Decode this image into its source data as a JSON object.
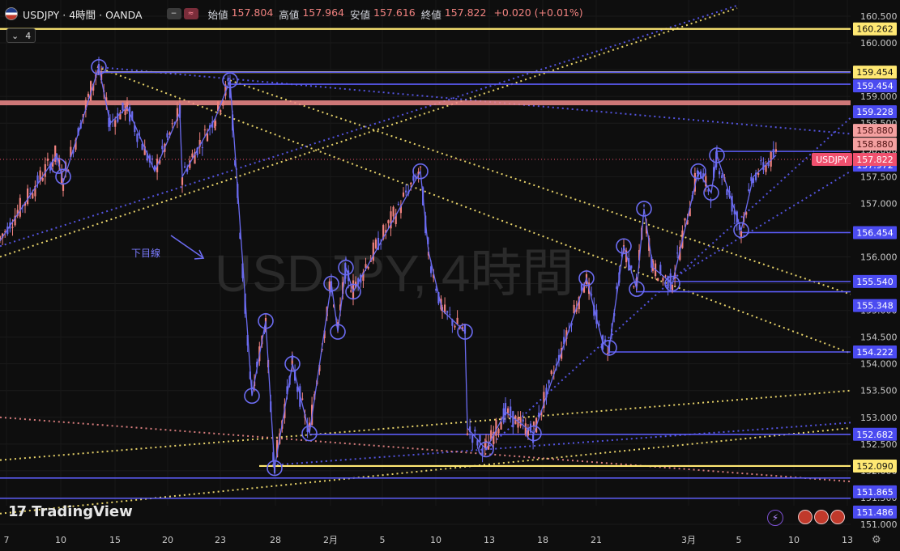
{
  "header": {
    "symbol_line": "USDJPY · 4時間 · OANDA",
    "pill_icons": [
      "minus-icon",
      "approx-icon"
    ],
    "open_label": "始値",
    "open": "157.804",
    "high_label": "高値",
    "high": "157.964",
    "low_label": "安値",
    "low": "157.616",
    "close_label": "終値",
    "close": "157.822",
    "change": "+0.020 (+0.01%)"
  },
  "indicator_toggle": {
    "icon": "chevron-down-icon",
    "count": "4"
  },
  "watermark": "USDJPY, 4時間",
  "annotation": "下目線",
  "branding": "TradingView",
  "colors": {
    "background": "#0e0e0e",
    "bull": "#f0827f",
    "bear": "#6b6bf0",
    "yellow": "#ffe873",
    "blue": "#5b5bf5",
    "red_zone": "#f08a8a",
    "last_price_bg": "#f0506e"
  },
  "chart_data": {
    "type": "candlestick",
    "symbol": "USDJPY",
    "timeframe": "4時間",
    "ylim": [
      151.0,
      160.65
    ],
    "y_ticks": [
      "151.000",
      "151.500",
      "152.000",
      "152.500",
      "153.000",
      "153.500",
      "154.000",
      "154.500",
      "155.000",
      "155.500",
      "156.000",
      "156.500",
      "157.000",
      "157.500",
      "158.000",
      "158.500",
      "159.000",
      "159.500",
      "160.000",
      "160.500"
    ],
    "x_ticks": [
      "7",
      "10",
      "15",
      "20",
      "23",
      "28",
      "2月",
      "5",
      "10",
      "13",
      "18",
      "21",
      "3月",
      "5",
      "10",
      "13"
    ],
    "last_price": {
      "label": "USDJPY",
      "value": "157.822"
    },
    "price_levels": [
      {
        "value": 160.262,
        "label": "160.262",
        "color": "yellow"
      },
      {
        "value": 159.454,
        "label": "159.454",
        "color": "yellow"
      },
      {
        "value": 159.454,
        "label": "159.454",
        "color": "blue"
      },
      {
        "value": 159.228,
        "label": "159.228",
        "color": "blue"
      },
      {
        "value": 158.88,
        "label": "158.880",
        "color": "red"
      },
      {
        "value": 158.88,
        "label": "158.880",
        "color": "red"
      },
      {
        "value": 157.972,
        "label": "157.972",
        "color": "blue"
      },
      {
        "value": 156.454,
        "label": "156.454",
        "color": "blue"
      },
      {
        "value": 155.54,
        "label": "155.540",
        "color": "blue"
      },
      {
        "value": 155.348,
        "label": "155.348",
        "color": "blue"
      },
      {
        "value": 154.222,
        "label": "154.222",
        "color": "blue"
      },
      {
        "value": 152.682,
        "label": "152.682",
        "color": "blue"
      },
      {
        "value": 152.09,
        "label": "152.090",
        "color": "yellow"
      },
      {
        "value": 151.865,
        "label": "151.865",
        "color": "blue"
      },
      {
        "value": 151.486,
        "label": "151.486",
        "color": "blue"
      }
    ],
    "swing_path": [
      [
        0,
        156.3
      ],
      [
        70,
        157.9
      ],
      [
        78,
        157.4
      ],
      [
        122,
        159.55
      ],
      [
        136,
        158.5
      ],
      [
        157,
        158.8
      ],
      [
        191,
        157.6
      ],
      [
        222,
        158.7
      ],
      [
        225,
        157.5
      ],
      [
        266,
        158.6
      ],
      [
        284,
        159.3
      ],
      [
        311,
        153.4
      ],
      [
        328,
        154.8
      ],
      [
        339,
        152.05
      ],
      [
        361,
        154.0
      ],
      [
        382,
        152.7
      ],
      [
        409,
        155.5
      ],
      [
        417,
        154.6
      ],
      [
        427,
        155.8
      ],
      [
        436,
        155.35
      ],
      [
        519,
        157.6
      ],
      [
        529,
        156.1
      ],
      [
        546,
        155.0
      ],
      [
        574,
        154.6
      ],
      [
        577,
        152.8
      ],
      [
        600,
        152.4
      ],
      [
        624,
        153.1
      ],
      [
        659,
        152.7
      ],
      [
        724,
        155.6
      ],
      [
        744,
        154.4
      ],
      [
        752,
        154.3
      ],
      [
        770,
        156.2
      ],
      [
        786,
        155.4
      ],
      [
        795,
        156.9
      ],
      [
        806,
        155.8
      ],
      [
        830,
        155.5
      ],
      [
        862,
        157.6
      ],
      [
        878,
        157.2
      ],
      [
        885,
        157.9
      ],
      [
        915,
        156.5
      ],
      [
        930,
        157.5
      ],
      [
        958,
        157.9
      ]
    ],
    "pivot_circles": [
      [
        72,
        157.7
      ],
      [
        78,
        157.5
      ],
      [
        122,
        159.55
      ],
      [
        284,
        159.3
      ],
      [
        311,
        153.4
      ],
      [
        328,
        154.8
      ],
      [
        339,
        152.05
      ],
      [
        361,
        154.0
      ],
      [
        382,
        152.7
      ],
      [
        409,
        155.5
      ],
      [
        417,
        154.6
      ],
      [
        427,
        155.8
      ],
      [
        436,
        155.35
      ],
      [
        519,
        157.6
      ],
      [
        574,
        154.6
      ],
      [
        600,
        152.4
      ],
      [
        659,
        152.7
      ],
      [
        724,
        155.6
      ],
      [
        752,
        154.3
      ],
      [
        770,
        156.2
      ],
      [
        786,
        155.4
      ],
      [
        795,
        156.9
      ],
      [
        830,
        155.5
      ],
      [
        862,
        157.6
      ],
      [
        878,
        157.2
      ],
      [
        885,
        157.9
      ],
      [
        915,
        156.5
      ]
    ],
    "trend_lines": [
      {
        "from": [
          120,
          159.55
        ],
        "to": [
          1050,
          154.2
        ],
        "color": "yellow"
      },
      {
        "from": [
          0,
          156.0
        ],
        "to": [
          910,
          160.65
        ],
        "color": "yellow"
      },
      {
        "from": [
          0,
          152.2
        ],
        "to": [
          1050,
          153.5
        ],
        "color": "yellow"
      },
      {
        "from": [
          0,
          151.2
        ],
        "to": [
          1050,
          152.8
        ],
        "color": "yellow"
      },
      {
        "from": [
          284,
          159.3
        ],
        "to": [
          1050,
          155.3
        ],
        "color": "yellow"
      },
      {
        "from": [
          0,
          156.2
        ],
        "to": [
          910,
          160.7
        ],
        "color": "blue"
      },
      {
        "from": [
          120,
          159.55
        ],
        "to": [
          1050,
          158.3
        ],
        "color": "blue"
      },
      {
        "from": [
          600,
          152.4
        ],
        "to": [
          1050,
          158.6
        ],
        "color": "blue"
      },
      {
        "from": [
          820,
          155.5
        ],
        "to": [
          1050,
          157.6
        ],
        "color": "blue"
      },
      {
        "from": [
          330,
          152.1
        ],
        "to": [
          1050,
          152.9
        ],
        "color": "blue"
      },
      {
        "from": [
          0,
          153.0
        ],
        "to": [
          1050,
          151.8
        ],
        "color": "red"
      }
    ]
  }
}
